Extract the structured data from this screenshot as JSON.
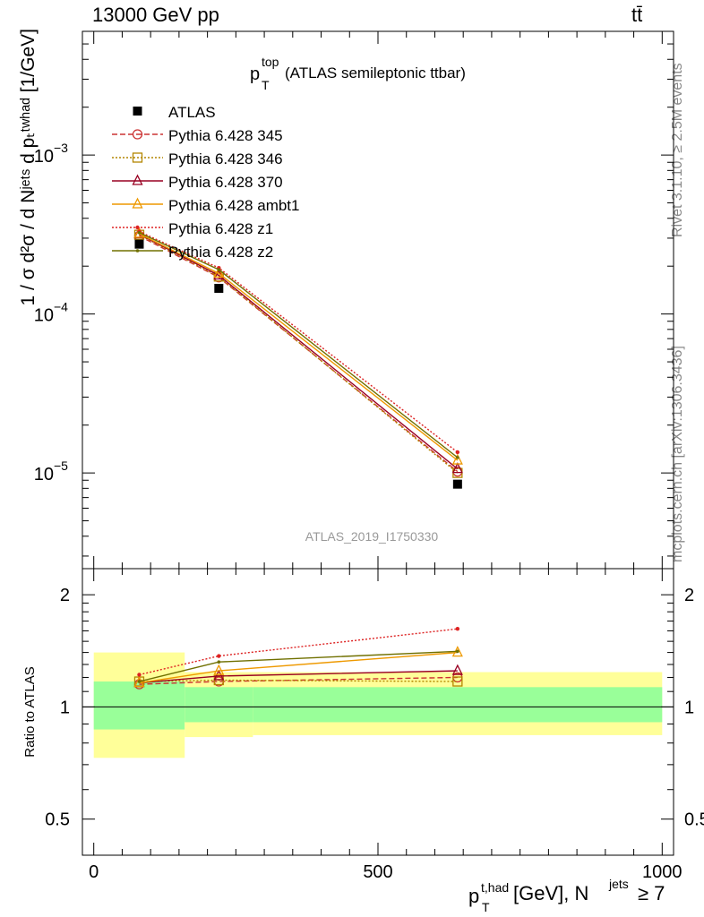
{
  "header": {
    "energy_label": "13000 GeV pp",
    "process_label": "tt̄"
  },
  "side_labels": {
    "rivet": "Rivet 3.1.10, ≥ 2.5M events",
    "mcplots": "mcplots.cern.ch [arXiv:1306.3436]"
  },
  "chart_data": {
    "type": "line",
    "title_main": "p",
    "title_sup": "top",
    "title_sub": "T",
    "title_rest": " (ATLAS semileptonic ttbar)",
    "analysis_tag": "ATLAS_2019_I1750330",
    "xlabel": {
      "base": "p",
      "sup": "t,had",
      "sub": "T",
      "rest": " [GeV], N",
      "sup2": "jets",
      "rest2": " ≥ 7"
    },
    "ylabel": {
      "text": "1 / σ d²σ / d Nʲᵉᵗˢ d pₜᵗʷʰᵃᵈ [1/GeV]"
    },
    "ratio_ylabel": "Ratio to ATLAS",
    "xlim": [
      -20,
      1020
    ],
    "ylim_log": [
      2.5e-06,
      0.006
    ],
    "ratio_ylim": [
      0.4,
      2.35
    ],
    "x_ticks": [
      0,
      500,
      1000
    ],
    "x_tick_labels": [
      "0",
      "500",
      "1000"
    ],
    "y_major_ticks": [
      {
        "value": 0.001,
        "base": "10",
        "exp": "−3"
      },
      {
        "value": 0.0001,
        "base": "10",
        "exp": "−4"
      },
      {
        "value": 1e-05,
        "base": "10",
        "exp": "−5"
      }
    ],
    "ratio_ticks": [
      {
        "value": 0.5,
        "label": "0.5"
      },
      {
        "value": 1,
        "label": "1"
      },
      {
        "value": 2,
        "label": "2"
      }
    ],
    "x": [
      80,
      220,
      640
    ],
    "bins": [
      [
        0,
        160
      ],
      [
        160,
        280
      ],
      [
        280,
        1000
      ]
    ],
    "data": {
      "name": "ATLAS",
      "values": [
        0.000275,
        0.000145,
        8.5e-06
      ]
    },
    "bands": {
      "inner": [
        [
          0.87,
          1.17
        ],
        [
          0.91,
          1.13
        ],
        [
          0.91,
          1.13
        ]
      ],
      "outer": [
        [
          0.73,
          1.4
        ],
        [
          0.83,
          1.24
        ],
        [
          0.84,
          1.24
        ]
      ]
    },
    "series": [
      {
        "name": "Pythia 6.428 345",
        "color": "#cc3333",
        "dash": "6,3",
        "marker": "circle",
        "values": [
          0.00031,
          0.00017,
          1.02e-05
        ],
        "ratios": [
          1.15,
          1.17,
          1.2
        ]
      },
      {
        "name": "Pythia 6.428 346",
        "color": "#b38600",
        "dash": "2,2",
        "marker": "square",
        "values": [
          0.000315,
          0.000172,
          1e-05
        ],
        "ratios": [
          1.17,
          1.18,
          1.17
        ]
      },
      {
        "name": "Pythia 6.428 370",
        "color": "#990022",
        "dash": "",
        "marker": "triangle",
        "values": [
          0.000318,
          0.000175,
          1.06e-05
        ],
        "ratios": [
          1.16,
          1.21,
          1.25
        ]
      },
      {
        "name": "Pythia 6.428 ambt1",
        "color": "#ee9900",
        "dash": "",
        "marker": "triangle",
        "values": [
          0.00032,
          0.00018,
          1.2e-05
        ],
        "ratios": [
          1.16,
          1.25,
          1.4
        ]
      },
      {
        "name": "Pythia 6.428 z1",
        "color": "#dd2222",
        "dash": "2,2",
        "marker": "star",
        "values": [
          0.00033,
          0.000195,
          1.35e-05
        ],
        "ratios": [
          1.22,
          1.37,
          1.62
        ]
      },
      {
        "name": "Pythia 6.428 z2",
        "color": "#707000",
        "dash": "",
        "marker": "dot",
        "values": [
          0.000325,
          0.00019,
          1.25e-05
        ],
        "ratios": [
          1.17,
          1.32,
          1.41
        ]
      }
    ]
  }
}
